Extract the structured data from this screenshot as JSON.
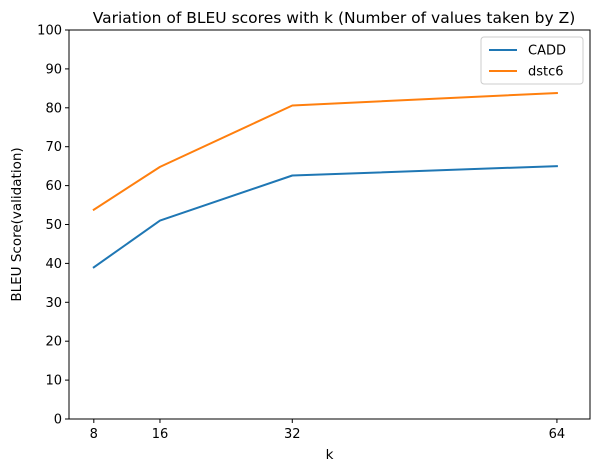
{
  "chart_data": {
    "type": "line",
    "title": "Variation of BLEU scores with k (Number of values taken by Z)",
    "xlabel": "k",
    "ylabel": "BLEU Score(validation)",
    "x": [
      8,
      16,
      32,
      64
    ],
    "xticks": [
      "8",
      "16",
      "32",
      "64"
    ],
    "yticks": [
      "0",
      "10",
      "20",
      "30",
      "40",
      "50",
      "60",
      "70",
      "80",
      "90",
      "100"
    ],
    "ylim": [
      0,
      100
    ],
    "xlim": [
      5,
      68
    ],
    "grid": false,
    "legend_position": "top-right",
    "series": [
      {
        "name": "CADD",
        "color": "#1f77b4",
        "values": [
          39,
          51,
          62.6,
          65
        ]
      },
      {
        "name": "dstc6",
        "color": "#ff7f0e",
        "values": [
          53.8,
          64.8,
          80.6,
          83.8
        ]
      }
    ]
  }
}
